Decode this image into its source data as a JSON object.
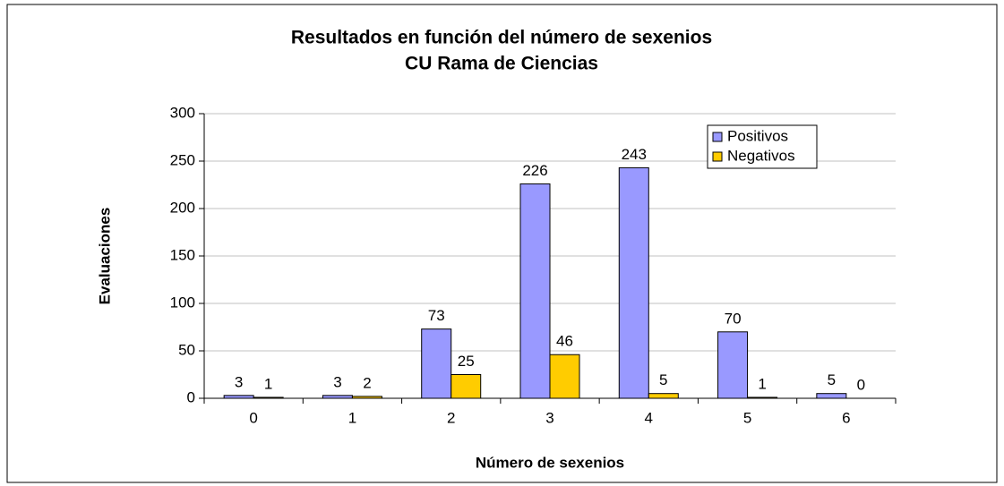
{
  "chart_data": {
    "type": "bar",
    "title": "Resultados en función del número de sexenios",
    "subtitle": "CU Rama de Ciencias",
    "x_label": "Número de sexenios",
    "y_label": "Evaluaciones",
    "categories": [
      "0",
      "1",
      "2",
      "3",
      "4",
      "5",
      "6"
    ],
    "series": [
      {
        "name": "Positivos",
        "color": "#9999ff",
        "values": [
          3,
          3,
          73,
          226,
          243,
          70,
          5
        ]
      },
      {
        "name": "Negativos",
        "color": "#ffcc00",
        "values": [
          1,
          2,
          25,
          46,
          5,
          1,
          0
        ]
      }
    ],
    "ylim": [
      0,
      300
    ],
    "yticks": [
      0,
      50,
      100,
      150,
      200,
      250,
      300
    ],
    "grid": true,
    "legend": "top-right"
  }
}
